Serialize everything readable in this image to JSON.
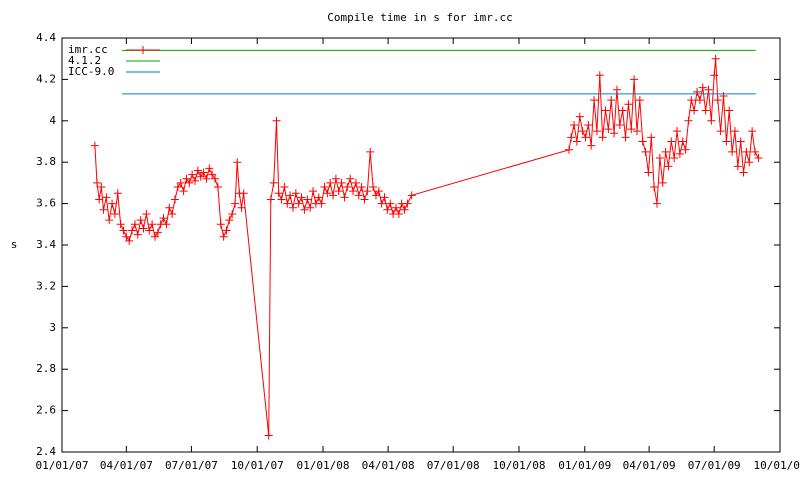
{
  "chart_data": {
    "type": "line",
    "title": "Compile time in s for imr.cc",
    "ylabel": "s",
    "legend": "top-left",
    "xlim": [
      "2007-01-01",
      "2009-10-01"
    ],
    "xticks": [
      {
        "value": "2007-01-01",
        "label": "01/01/07"
      },
      {
        "value": "2007-04-01",
        "label": "04/01/07"
      },
      {
        "value": "2007-07-01",
        "label": "07/01/07"
      },
      {
        "value": "2007-10-01",
        "label": "10/01/07"
      },
      {
        "value": "2008-01-01",
        "label": "01/01/08"
      },
      {
        "value": "2008-04-01",
        "label": "04/01/08"
      },
      {
        "value": "2008-07-01",
        "label": "07/01/08"
      },
      {
        "value": "2008-10-01",
        "label": "10/01/08"
      },
      {
        "value": "2009-01-01",
        "label": "01/01/09"
      },
      {
        "value": "2009-04-01",
        "label": "04/01/09"
      },
      {
        "value": "2009-07-01",
        "label": "07/01/09"
      },
      {
        "value": "2009-10-01",
        "label": "10/01/09"
      }
    ],
    "ylim": [
      2.4,
      4.4
    ],
    "yticks": [
      2.4,
      2.6,
      2.8,
      3,
      3.2,
      3.4,
      3.6,
      3.8,
      4,
      4.2,
      4.4
    ],
    "series": [
      {
        "name": "imr.cc",
        "color": "#ff0000",
        "marker": "+",
        "x": [
          "2007-02-16",
          "2007-02-19",
          "2007-02-22",
          "2007-02-25",
          "2007-02-28",
          "2007-03-04",
          "2007-03-08",
          "2007-03-12",
          "2007-03-16",
          "2007-03-20",
          "2007-03-24",
          "2007-03-28",
          "2007-04-01",
          "2007-04-05",
          "2007-04-09",
          "2007-04-13",
          "2007-04-17",
          "2007-04-21",
          "2007-04-25",
          "2007-04-29",
          "2007-05-03",
          "2007-05-07",
          "2007-05-11",
          "2007-05-15",
          "2007-05-19",
          "2007-05-23",
          "2007-05-27",
          "2007-05-31",
          "2007-06-04",
          "2007-06-08",
          "2007-06-12",
          "2007-06-16",
          "2007-06-20",
          "2007-06-24",
          "2007-06-28",
          "2007-07-02",
          "2007-07-06",
          "2007-07-10",
          "2007-07-14",
          "2007-07-18",
          "2007-07-22",
          "2007-07-26",
          "2007-07-30",
          "2007-08-03",
          "2007-08-07",
          "2007-08-11",
          "2007-08-15",
          "2007-08-19",
          "2007-08-23",
          "2007-08-27",
          "2007-08-31",
          "2007-09-03",
          "2007-09-06",
          "2007-09-09",
          "2007-09-12",
          "2007-10-17",
          "2007-10-20",
          "2007-10-24",
          "2007-10-28",
          "2007-10-31",
          "2007-11-04",
          "2007-11-08",
          "2007-11-12",
          "2007-11-16",
          "2007-11-20",
          "2007-11-24",
          "2007-11-28",
          "2007-12-02",
          "2007-12-06",
          "2007-12-10",
          "2007-12-14",
          "2007-12-18",
          "2007-12-22",
          "2007-12-26",
          "2007-12-30",
          "2008-01-03",
          "2008-01-07",
          "2008-01-11",
          "2008-01-15",
          "2008-01-19",
          "2008-01-23",
          "2008-01-27",
          "2008-01-31",
          "2008-02-04",
          "2008-02-08",
          "2008-02-12",
          "2008-02-16",
          "2008-02-20",
          "2008-02-24",
          "2008-02-28",
          "2008-03-03",
          "2008-03-07",
          "2008-03-11",
          "2008-03-15",
          "2008-03-19",
          "2008-03-23",
          "2008-03-27",
          "2008-03-31",
          "2008-04-04",
          "2008-04-08",
          "2008-04-12",
          "2008-04-16",
          "2008-04-20",
          "2008-04-24",
          "2008-04-28",
          "2008-05-04",
          "2008-12-10",
          "2008-12-13",
          "2008-12-17",
          "2008-12-21",
          "2008-12-25",
          "2008-12-29",
          "2009-01-02",
          "2009-01-06",
          "2009-01-10",
          "2009-01-14",
          "2009-01-18",
          "2009-01-22",
          "2009-01-26",
          "2009-01-30",
          "2009-02-03",
          "2009-02-07",
          "2009-02-11",
          "2009-02-15",
          "2009-02-19",
          "2009-02-23",
          "2009-02-27",
          "2009-03-03",
          "2009-03-07",
          "2009-03-11",
          "2009-03-15",
          "2009-03-19",
          "2009-03-23",
          "2009-03-27",
          "2009-03-31",
          "2009-04-04",
          "2009-04-08",
          "2009-04-12",
          "2009-04-16",
          "2009-04-20",
          "2009-04-24",
          "2009-04-28",
          "2009-05-02",
          "2009-05-06",
          "2009-05-10",
          "2009-05-14",
          "2009-05-18",
          "2009-05-22",
          "2009-05-26",
          "2009-05-30",
          "2009-06-03",
          "2009-06-07",
          "2009-06-11",
          "2009-06-15",
          "2009-06-19",
          "2009-06-23",
          "2009-06-27",
          "2009-07-01",
          "2009-07-03",
          "2009-07-06",
          "2009-07-10",
          "2009-07-14",
          "2009-07-18",
          "2009-07-22",
          "2009-07-26",
          "2009-07-30",
          "2009-08-03",
          "2009-08-07",
          "2009-08-11",
          "2009-08-15",
          "2009-08-19",
          "2009-08-23",
          "2009-08-27",
          "2009-09-01"
        ],
        "values": [
          3.88,
          3.7,
          3.62,
          3.68,
          3.57,
          3.63,
          3.52,
          3.6,
          3.55,
          3.65,
          3.5,
          3.47,
          3.44,
          3.42,
          3.47,
          3.5,
          3.45,
          3.52,
          3.48,
          3.55,
          3.47,
          3.5,
          3.44,
          3.46,
          3.5,
          3.53,
          3.5,
          3.58,
          3.55,
          3.62,
          3.68,
          3.7,
          3.66,
          3.72,
          3.7,
          3.74,
          3.71,
          3.76,
          3.73,
          3.75,
          3.72,
          3.77,
          3.74,
          3.72,
          3.68,
          3.5,
          3.44,
          3.47,
          3.52,
          3.55,
          3.6,
          3.8,
          3.65,
          3.58,
          3.65,
          2.48,
          3.62,
          3.7,
          4.0,
          3.65,
          3.62,
          3.68,
          3.6,
          3.64,
          3.58,
          3.65,
          3.6,
          3.63,
          3.57,
          3.62,
          3.58,
          3.66,
          3.6,
          3.63,
          3.6,
          3.68,
          3.65,
          3.7,
          3.64,
          3.72,
          3.66,
          3.7,
          3.63,
          3.68,
          3.72,
          3.66,
          3.7,
          3.64,
          3.68,
          3.62,
          3.66,
          3.85,
          3.68,
          3.64,
          3.66,
          3.6,
          3.63,
          3.57,
          3.6,
          3.55,
          3.58,
          3.55,
          3.6,
          3.57,
          3.6,
          3.64,
          3.86,
          3.92,
          3.98,
          3.9,
          4.02,
          3.95,
          3.92,
          3.98,
          3.88,
          4.1,
          3.95,
          4.22,
          3.92,
          4.05,
          3.96,
          4.1,
          3.94,
          4.15,
          3.98,
          4.05,
          3.92,
          4.08,
          3.96,
          4.2,
          3.95,
          4.1,
          3.9,
          3.85,
          3.75,
          3.92,
          3.68,
          3.6,
          3.82,
          3.7,
          3.85,
          3.78,
          3.9,
          3.82,
          3.95,
          3.84,
          3.9,
          3.86,
          4.0,
          4.1,
          4.05,
          4.14,
          4.1,
          4.16,
          4.05,
          4.15,
          4.0,
          4.22,
          4.3,
          4.1,
          3.95,
          4.12,
          3.9,
          4.05,
          3.85,
          3.95,
          3.78,
          3.9,
          3.75,
          3.85,
          3.8,
          3.95,
          3.85,
          3.82
        ]
      },
      {
        "name": "4.1.2",
        "color": "#00a000",
        "x": [
          "2007-03-26",
          "2009-08-28"
        ],
        "values": [
          4.34,
          4.34
        ]
      },
      {
        "name": "ICC-9.0",
        "color": "#0080c0",
        "x": [
          "2007-03-26",
          "2009-08-28"
        ],
        "values": [
          4.13,
          4.13
        ]
      }
    ]
  }
}
